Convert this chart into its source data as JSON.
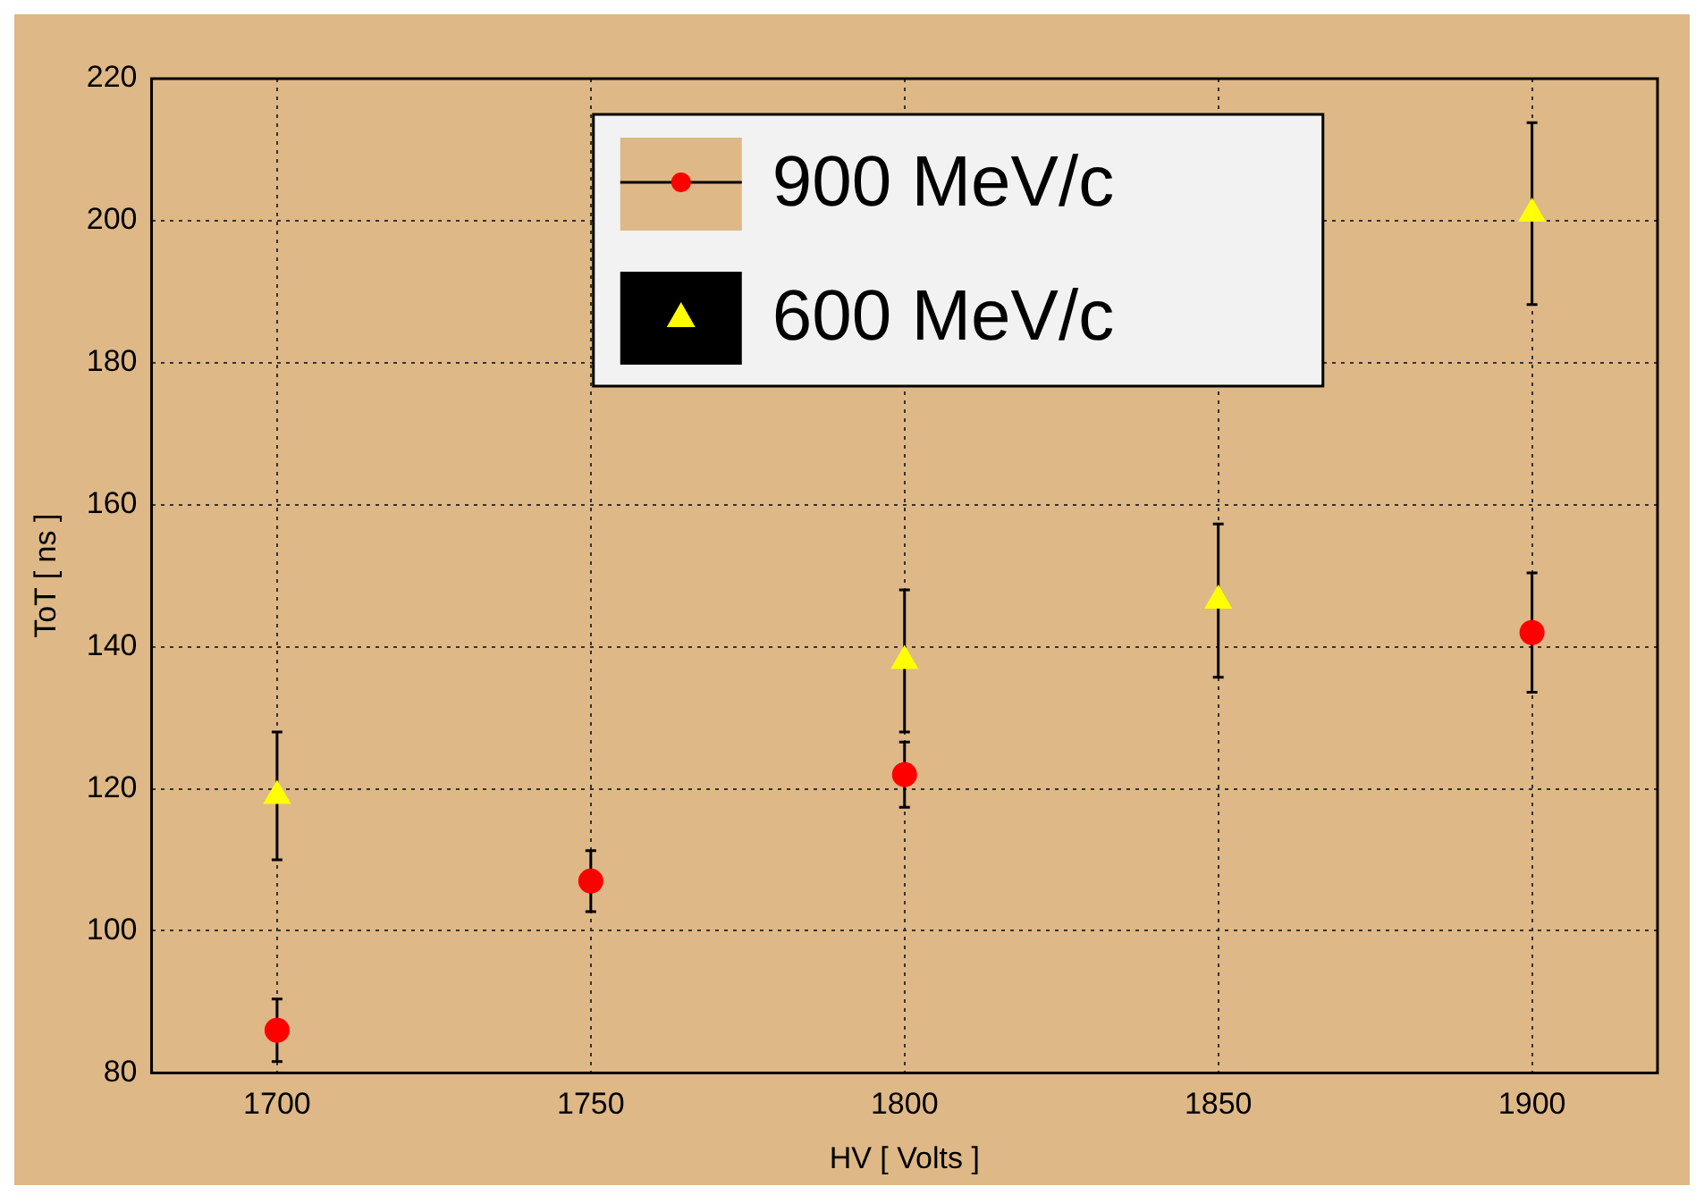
{
  "chart_data": {
    "type": "scatter",
    "xlabel": "HV [ Volts ]",
    "ylabel": "ToT [ ns ]",
    "xlim": [
      1680,
      1920
    ],
    "xticks": [
      1700,
      1750,
      1800,
      1850,
      1900
    ],
    "ylim": [
      80,
      220
    ],
    "yticks": [
      80,
      100,
      120,
      140,
      160,
      180,
      200,
      220
    ],
    "grid": true,
    "legend": "top",
    "series": [
      {
        "name": "900 MeV/c",
        "color": "#ff0000",
        "marker": "circle",
        "x": [
          1700,
          1750,
          1800,
          1900
        ],
        "values": [
          86,
          107,
          122,
          142
        ],
        "errors": [
          4.4,
          4.3,
          4.6,
          8.4
        ]
      },
      {
        "name": "600 MeV/c",
        "color": "#ffff00",
        "marker": "triangle",
        "x": [
          1700,
          1800,
          1850,
          1900
        ],
        "values": [
          119,
          138,
          146.5,
          201
        ],
        "errors": [
          9,
          10,
          10.8,
          12.8
        ]
      }
    ]
  }
}
